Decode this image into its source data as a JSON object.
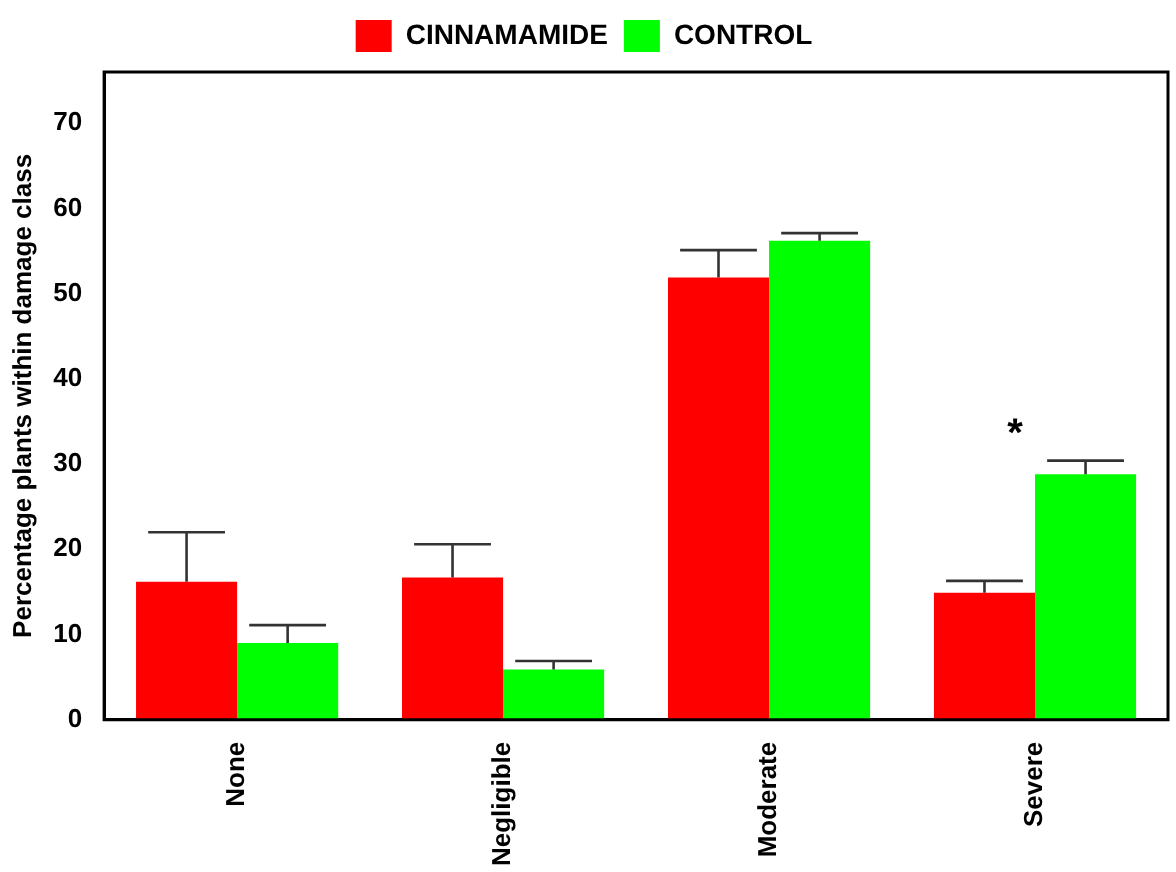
{
  "chart_data": {
    "type": "bar",
    "ylabel": "Percentage plants within damage class",
    "categories": [
      "None",
      "Negligible",
      "Moderate",
      "Severe"
    ],
    "series": [
      {
        "name": "CINNAMAMIDE",
        "color": "#ff0000",
        "values": [
          16.2,
          16.7,
          51.9,
          14.9
        ],
        "errors": [
          [
            16.2,
            22.0
          ],
          [
            16.7,
            20.6
          ],
          [
            51.9,
            55.1
          ],
          [
            14.9,
            16.3
          ]
        ]
      },
      {
        "name": "CONTROL",
        "color": "#00ff00",
        "values": [
          9.0,
          5.9,
          56.2,
          28.8
        ],
        "errors": [
          [
            9.0,
            11.1
          ],
          [
            5.9,
            6.9
          ],
          [
            56.2,
            57.1
          ],
          [
            28.8,
            30.4
          ]
        ]
      }
    ],
    "ylim": [
      0,
      76
    ],
    "yticks": [
      0,
      10,
      20,
      30,
      40,
      50,
      60,
      70
    ],
    "grid": false,
    "legend": "top",
    "annotations": [
      "*"
    ]
  }
}
